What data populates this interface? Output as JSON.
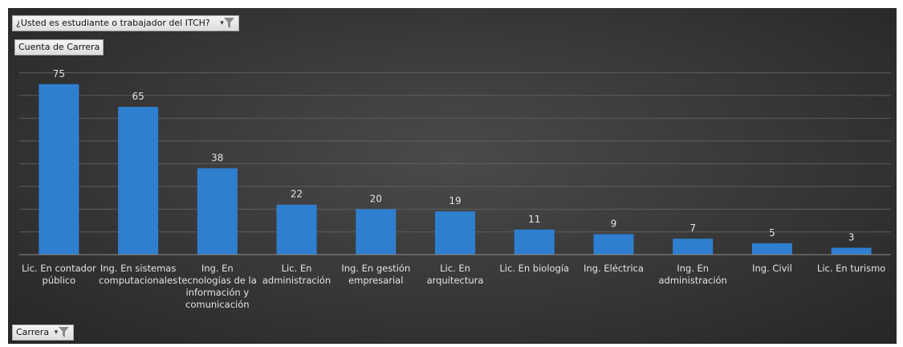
{
  "page_filter": {
    "label": "¿Usted es estudiante o trabajador del ITCH?",
    "icon": "filter-icon"
  },
  "value_field": {
    "label": "Cuenta de Carrera"
  },
  "axis_field": {
    "label": "Carrera",
    "icon": "filter-icon"
  },
  "colors": {
    "bar": "#2f7fd0",
    "gridline": "#5e5e5e",
    "label_text": "#e4e4e4",
    "background": "#3a3a3a"
  },
  "chart_data": {
    "type": "bar",
    "categories": [
      "Lic. En contador público",
      "Ing. En sistemas computacionales",
      "Ing. En tecnologías de la información y comunicación",
      "Lic. En administración",
      "Ing. En gestión empresarial",
      "Lic. En arquitectura",
      "Lic. En biología",
      "Ing. Eléctrica",
      "Ing. En administración",
      "Ing. Civil",
      "Lic. En turismo"
    ],
    "category_label_lines": [
      [
        "Lic. En contador",
        "público"
      ],
      [
        "Ing. En sistemas",
        "computacionales"
      ],
      [
        "Ing. En",
        "tecnologías de la",
        "información y",
        "comunicación"
      ],
      [
        "Lic. En",
        "administración"
      ],
      [
        "Ing. En gestión",
        "empresarial"
      ],
      [
        "Lic. En",
        "arquitectura"
      ],
      [
        "Lic. En biología"
      ],
      [
        "Ing. Eléctrica"
      ],
      [
        "Ing. En",
        "administración"
      ],
      [
        "Ing. Civil"
      ],
      [
        "Lic. En turismo"
      ]
    ],
    "values": [
      75,
      65,
      38,
      22,
      20,
      19,
      11,
      9,
      7,
      5,
      3
    ],
    "ylim": [
      0,
      80
    ],
    "y_gridline_step": 10,
    "grid": true,
    "data_labels": true,
    "legend": "none"
  }
}
